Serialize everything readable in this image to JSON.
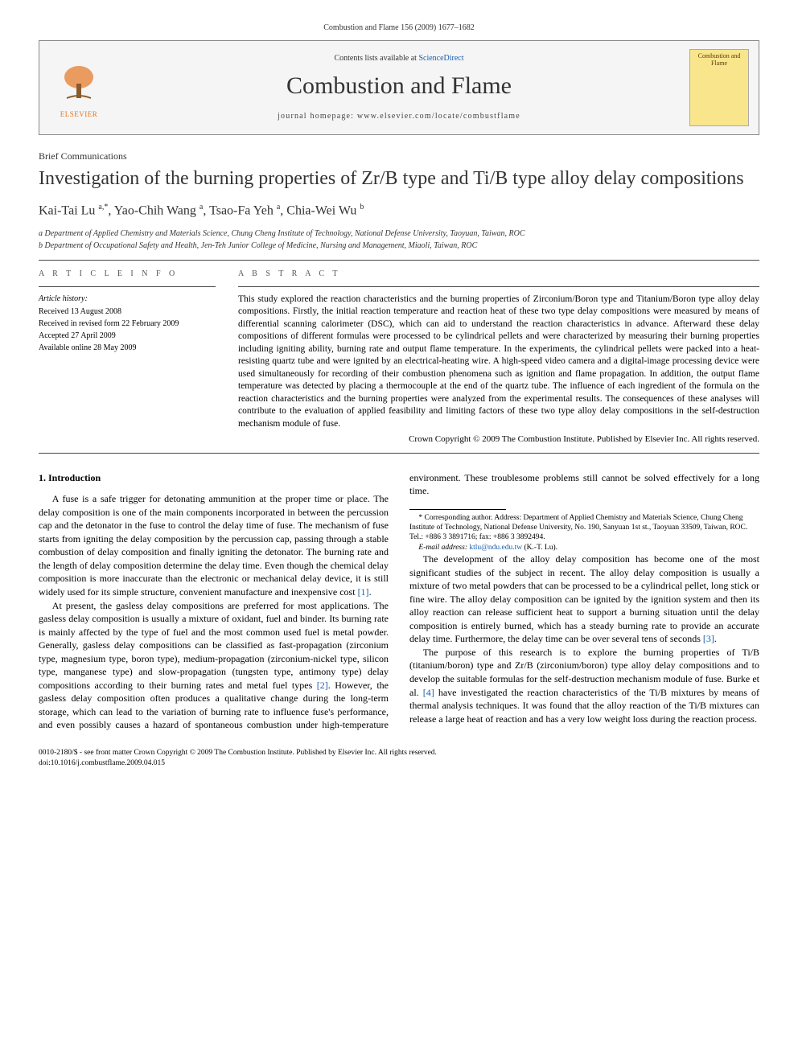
{
  "running_head": "Combustion and Flame 156 (2009) 1677–1682",
  "header": {
    "contents_line_pre": "Contents lists available at ",
    "contents_link": "ScienceDirect",
    "journal": "Combustion and Flame",
    "homepage_pre": "journal homepage: ",
    "homepage_url": "www.elsevier.com/locate/combustflame",
    "elsevier_label": "ELSEVIER",
    "cover_text": "Combustion and Flame"
  },
  "article_type": "Brief Communications",
  "title": "Investigation of the burning properties of Zr/B type and Ti/B type alloy delay compositions",
  "authors_html": "Kai-Tai Lu <sup>a,*</sup>, Yao-Chih Wang <sup>a</sup>, Tsao-Fa Yeh <sup>a</sup>, Chia-Wei Wu <sup>b</sup>",
  "affiliations": [
    "a Department of Applied Chemistry and Materials Science, Chung Cheng Institute of Technology, National Defense University, Taoyuan, Taiwan, ROC",
    "b Department of Occupational Safety and Health, Jen-Teh Junior College of Medicine, Nursing and Management, Miaoli, Taiwan, ROC"
  ],
  "info": {
    "heading": "A R T I C L E   I N F O",
    "history_label": "Article history:",
    "history": [
      "Received 13 August 2008",
      "Received in revised form 22 February 2009",
      "Accepted 27 April 2009",
      "Available online 28 May 2009"
    ]
  },
  "abstract": {
    "heading": "A B S T R A C T",
    "text": "This study explored the reaction characteristics and the burning properties of Zirconium/Boron type and Titanium/Boron type alloy delay compositions. Firstly, the initial reaction temperature and reaction heat of these two type delay compositions were measured by means of differential scanning calorimeter (DSC), which can aid to understand the reaction characteristics in advance. Afterward these delay compositions of different formulas were processed to be cylindrical pellets and were characterized by measuring their burning properties including igniting ability, burning rate and output flame temperature. In the experiments, the cylindrical pellets were packed into a heat-resisting quartz tube and were ignited by an electrical-heating wire. A high-speed video camera and a digital-image processing device were used simultaneously for recording of their combustion phenomena such as ignition and flame propagation. In addition, the output flame temperature was detected by placing a thermocouple at the end of the quartz tube. The influence of each ingredient of the formula on the reaction characteristics and the burning properties were analyzed from the experimental results. The consequences of these analyses will contribute to the evaluation of applied feasibility and limiting factors of these two type alloy delay compositions in the self-destruction mechanism module of fuse.",
    "copyright": "Crown Copyright © 2009 The Combustion Institute. Published by Elsevier Inc. All rights reserved."
  },
  "intro": {
    "heading": "1. Introduction",
    "paras": [
      "A fuse is a safe trigger for detonating ammunition at the proper time or place. The delay composition is one of the main components incorporated in between the percussion cap and the detonator in the fuse to control the delay time of fuse. The mechanism of fuse starts from igniting the delay composition by the percussion cap, passing through a stable combustion of delay composition and finally igniting the detonator. The burning rate and the length of delay composition determine the delay time. Even though the chemical delay composition is more inaccurate than the electronic or mechanical delay device, it is still widely used for its simple structure, convenient manufacture and inexpensive cost [1].",
      "At present, the gasless delay compositions are preferred for most applications. The gasless delay composition is usually a mixture of oxidant, fuel and binder. Its burning rate is mainly affected by the type of fuel and the most common used fuel is metal powder. Generally, gasless delay compositions can be classified as fast-propagation (zirconium type, magnesium type, boron type), medium-propagation (zirconium-nickel type, silicon type, manganese type) and slow-propagation (tungsten type, antimony type) delay compositions according to their burning rates and metal fuel types [2]. However, the gasless delay composition often produces a qualitative change during the long-term storage, which can lead to the variation of burning rate to influence fuse's performance, and even possibly causes a hazard of spontaneous combustion under high-temperature environment. These troublesome problems still cannot be solved effectively for a long time.",
      "The development of the alloy delay composition has become one of the most significant studies of the subject in recent. The alloy delay composition is usually a mixture of two metal powders that can be processed to be a cylindrical pellet, long stick or fine wire. The alloy delay composition can be ignited by the ignition system and then its alloy reaction can release sufficient heat to support a burning situation until the delay composition is entirely burned, which has a steady burning rate to provide an accurate delay time. Furthermore, the delay time can be over several tens of seconds [3].",
      "The purpose of this research is to explore the burning properties of Ti/B (titanium/boron) type and Zr/B (zirconium/boron) type alloy delay compositions and to develop the suitable formulas for the self-destruction mechanism module of fuse. Burke et al. [4] have investigated the reaction characteristics of the Ti/B mixtures by means of thermal analysis techniques. It was found that the alloy reaction of the Ti/B mixtures can release a large heat of reaction and has a very low weight loss during the reaction process."
    ]
  },
  "footnotes": {
    "corresponding": "* Corresponding author. Address: Department of Applied Chemistry and Materials Science, Chung Cheng Institute of Technology, National Defense University, No. 190, Sanyuan 1st st., Taoyuan 33509, Taiwan, ROC. Tel.: +886 3 3891716; fax: +886 3 3892494.",
    "email_label": "E-mail address: ",
    "email": "ktlu@ndu.edu.tw",
    "email_tail": " (K.-T. Lu)."
  },
  "footer": {
    "line1": "0010-2180/$ - see front matter Crown Copyright © 2009 The Combustion Institute. Published by Elsevier Inc. All rights reserved.",
    "line2": "doi:10.1016/j.combustflame.2009.04.015"
  },
  "colors": {
    "link": "#1a5dab",
    "elsevier_orange": "#e6751f",
    "header_bg": "#f5f5f5",
    "cover_bg": "#f8e58c"
  },
  "citation_refs": [
    "[1]",
    "[2]",
    "[3]",
    "[4]"
  ]
}
